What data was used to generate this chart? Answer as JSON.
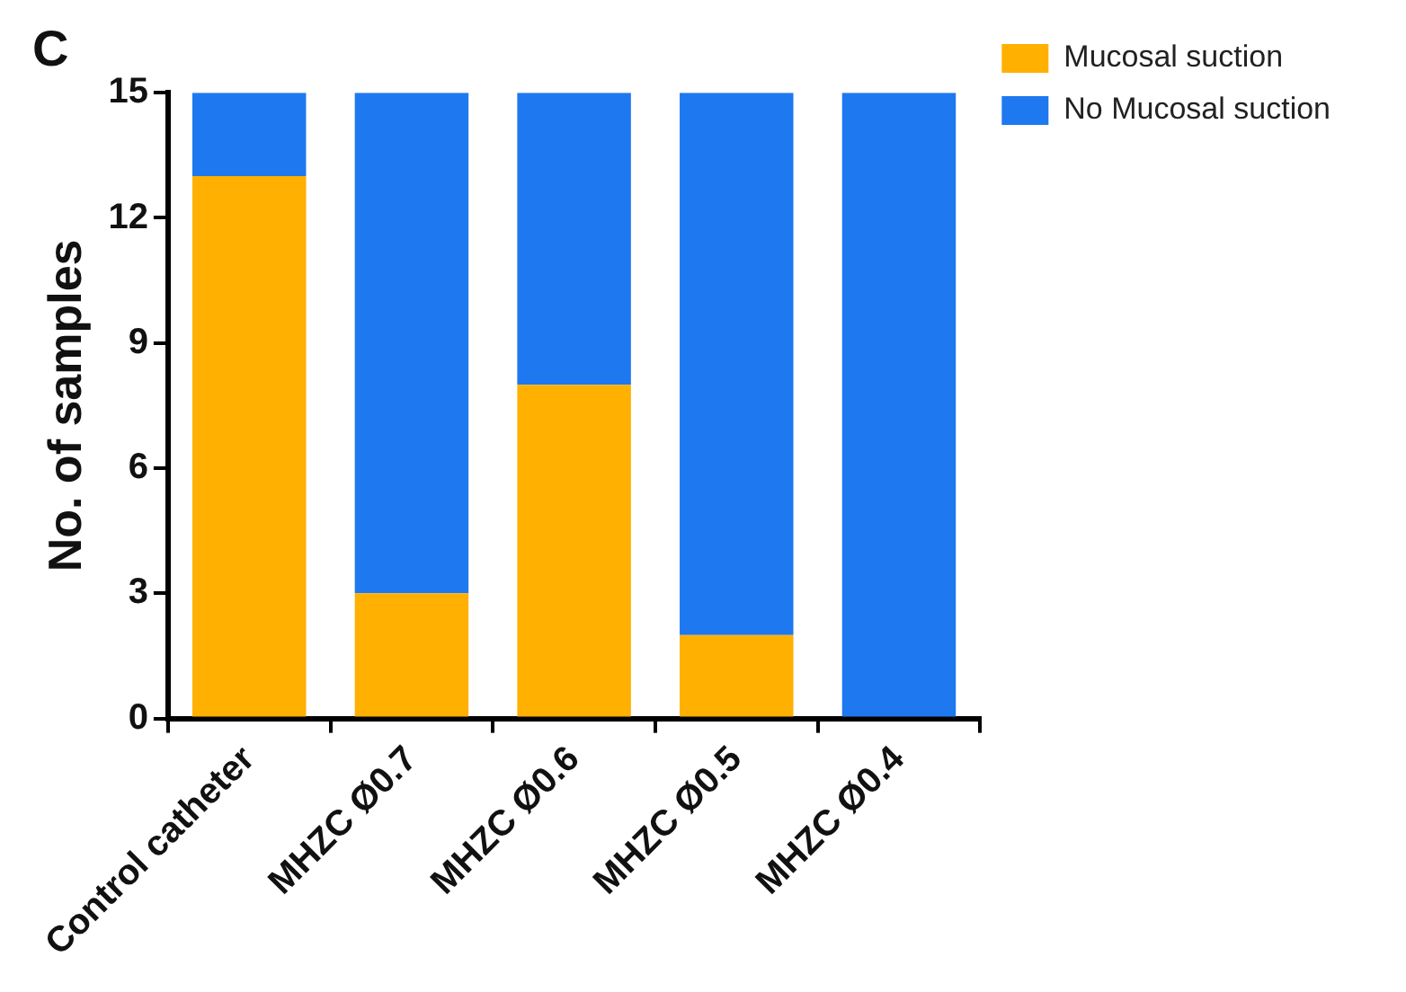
{
  "chart_data": {
    "type": "bar",
    "title": "C",
    "ylabel": "No. of samples",
    "categories": [
      "Control catheter",
      "MHZC Ø0.7",
      "MHZC Ø0.6",
      "MHZC Ø0.5",
      "MHZC Ø0.4"
    ],
    "series": [
      {
        "name": "Mucosal suction",
        "color": "#ffb000",
        "values": [
          13,
          3,
          8,
          2,
          0
        ]
      },
      {
        "name": "No Mucosal suction",
        "color": "#1e78f0",
        "values": [
          2,
          12,
          7,
          13,
          15
        ]
      }
    ],
    "stacked": true,
    "ylim": [
      0,
      15
    ],
    "yticks": [
      0,
      3,
      6,
      9,
      12,
      15
    ],
    "grid": false,
    "legend": "top right"
  }
}
